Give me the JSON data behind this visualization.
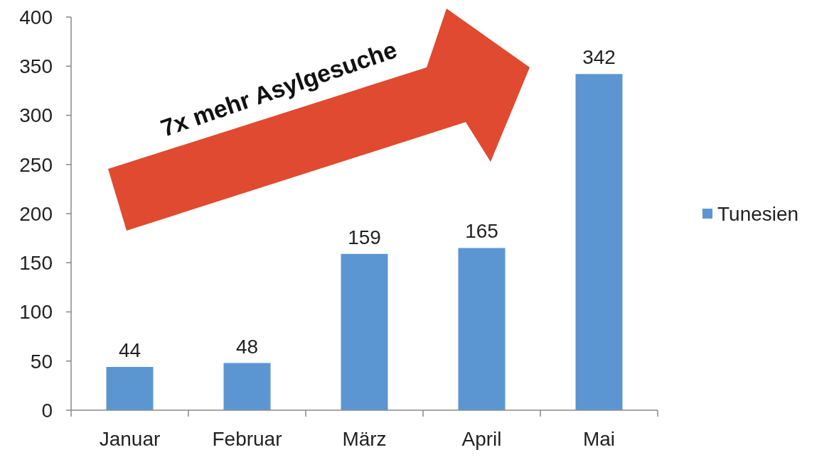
{
  "chart_data": {
    "type": "bar",
    "categories": [
      "Januar",
      "Februar",
      "März",
      "April",
      "Mai"
    ],
    "series": [
      {
        "name": "Tunesien",
        "color": "#5b96d2",
        "values": [
          44,
          48,
          159,
          165,
          342
        ]
      }
    ],
    "ylim": [
      0,
      400
    ],
    "yticks": [
      0,
      50,
      100,
      150,
      200,
      250,
      300,
      350,
      400
    ],
    "data_labels": true,
    "legend": "right",
    "grid": false,
    "annotations": [
      "7x mehr Asylgesuche"
    ]
  }
}
